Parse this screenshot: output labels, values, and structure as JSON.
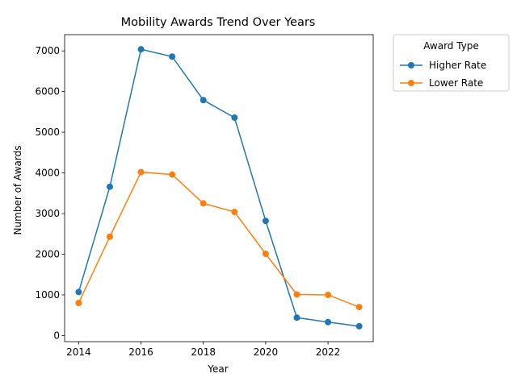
{
  "chart_data": {
    "type": "line",
    "title": "Mobility Awards Trend Over Years",
    "xlabel": "Year",
    "ylabel": "Number of Awards",
    "x": [
      2014,
      2015,
      2016,
      2017,
      2018,
      2019,
      2020,
      2021,
      2022,
      2023
    ],
    "xlim": [
      2013.55,
      2023.45
    ],
    "ylim": [
      -150,
      7400
    ],
    "xticks": [
      2014,
      2016,
      2018,
      2020,
      2022
    ],
    "yticks": [
      0,
      1000,
      2000,
      3000,
      4000,
      5000,
      6000,
      7000
    ],
    "grid": false,
    "legend": {
      "title": "Award Type",
      "placement": "outside-top-right"
    },
    "series": [
      {
        "name": "Higher Rate",
        "color": "#1f77b4",
        "values": [
          1070,
          3660,
          7040,
          6860,
          5790,
          5360,
          2820,
          440,
          330,
          230
        ]
      },
      {
        "name": "Lower Rate",
        "color": "#ff7f0e",
        "values": [
          800,
          2430,
          4020,
          3960,
          3250,
          3040,
          2010,
          1010,
          1000,
          700
        ]
      }
    ]
  }
}
